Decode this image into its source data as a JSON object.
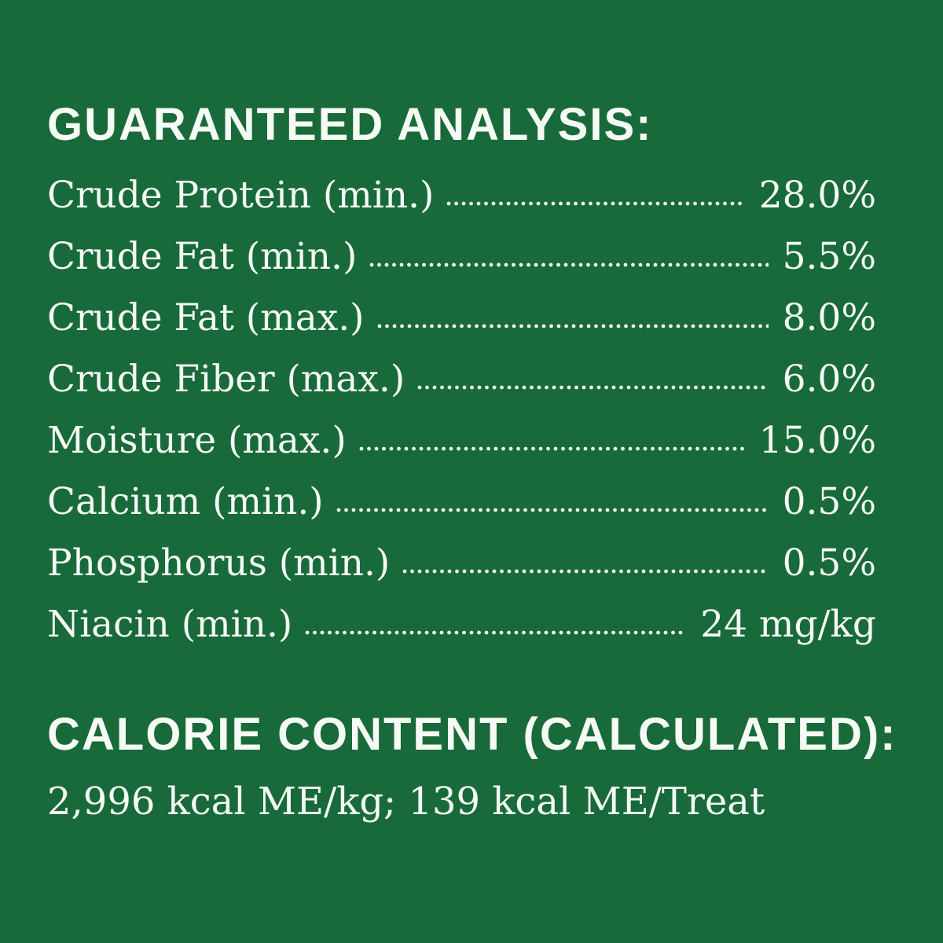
{
  "colors": {
    "background": "#186a3a",
    "text": "#f6faf4"
  },
  "guaranteed_analysis": {
    "title": "GUARANTEED ANALYSIS:",
    "rows": [
      {
        "label": "Crude Protein (min.)",
        "value": "28.0%"
      },
      {
        "label": "Crude Fat (min.)",
        "value": "5.5%"
      },
      {
        "label": "Crude Fat (max.)",
        "value": "8.0%"
      },
      {
        "label": "Crude Fiber (max.)",
        "value": "6.0%"
      },
      {
        "label": "Moisture (max.)",
        "value": "15.0%"
      },
      {
        "label": "Calcium (min.)",
        "value": "0.5%"
      },
      {
        "label": "Phosphorus (min.)",
        "value": "0.5%"
      },
      {
        "label": "Niacin (min.)",
        "value": "24 mg/kg"
      }
    ]
  },
  "calorie_content": {
    "title": "CALORIE CONTENT (CALCULATED):",
    "value": "2,996 kcal ME/kg; 139 kcal ME/Treat"
  }
}
